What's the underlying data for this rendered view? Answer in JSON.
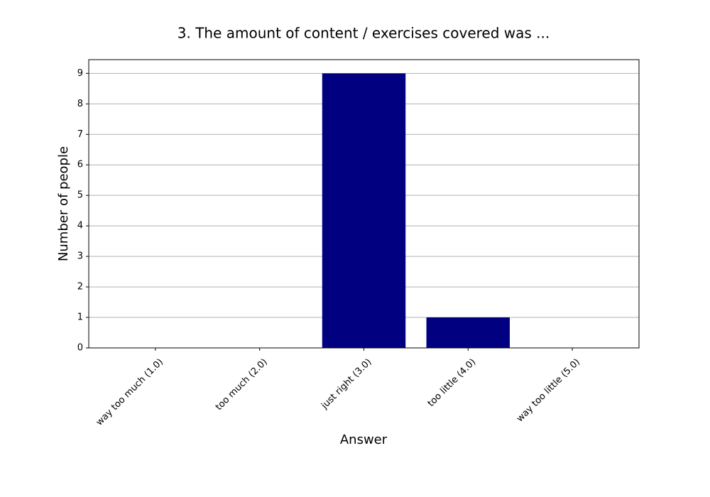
{
  "chart_data": {
    "type": "bar",
    "title": "3. The amount of content / exercises covered was ...",
    "x_label": "Answer",
    "y_label": "Number of people",
    "categories": [
      "way too much (1.0)",
      "too much (2.0)",
      "just right (3.0)",
      "too little (4.0)",
      "way too little (5.0)"
    ],
    "values": [
      0,
      0,
      9,
      1,
      0
    ],
    "color": "#000080",
    "ylim": [
      0,
      9.45
    ],
    "yticks": [
      0,
      1,
      2,
      3,
      4,
      5,
      6,
      7,
      8,
      9
    ],
    "grid": true
  }
}
